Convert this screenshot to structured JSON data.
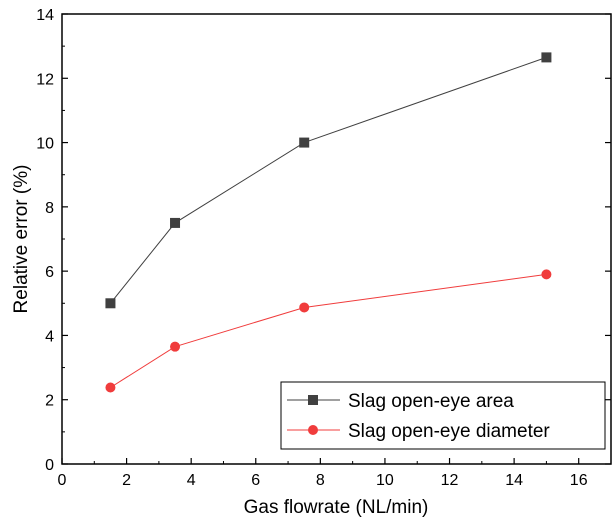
{
  "chart_data": {
    "type": "line",
    "title": "",
    "xlabel": "Gas flowrate (NL/min)",
    "ylabel": "Relative error (%)",
    "xlim": [
      0,
      17
    ],
    "ylim": [
      0,
      14
    ],
    "xticks": [
      "0",
      "2",
      "4",
      "6",
      "8",
      "10",
      "12",
      "14",
      "16"
    ],
    "yticks": [
      "0",
      "2",
      "4",
      "6",
      "8",
      "10",
      "12",
      "14"
    ],
    "grid": false,
    "legend_position": "bottom-right",
    "series": [
      {
        "name": "Slag open-eye area",
        "marker": "square",
        "color": "#404040",
        "x": [
          1.5,
          3.5,
          7.5,
          15
        ],
        "y": [
          5.0,
          7.5,
          10.0,
          12.65
        ]
      },
      {
        "name": "Slag open-eye diameter",
        "marker": "circle",
        "color": "#f03c3c",
        "x": [
          1.5,
          3.5,
          7.5,
          15
        ],
        "y": [
          2.38,
          3.65,
          4.87,
          5.9
        ]
      }
    ]
  }
}
